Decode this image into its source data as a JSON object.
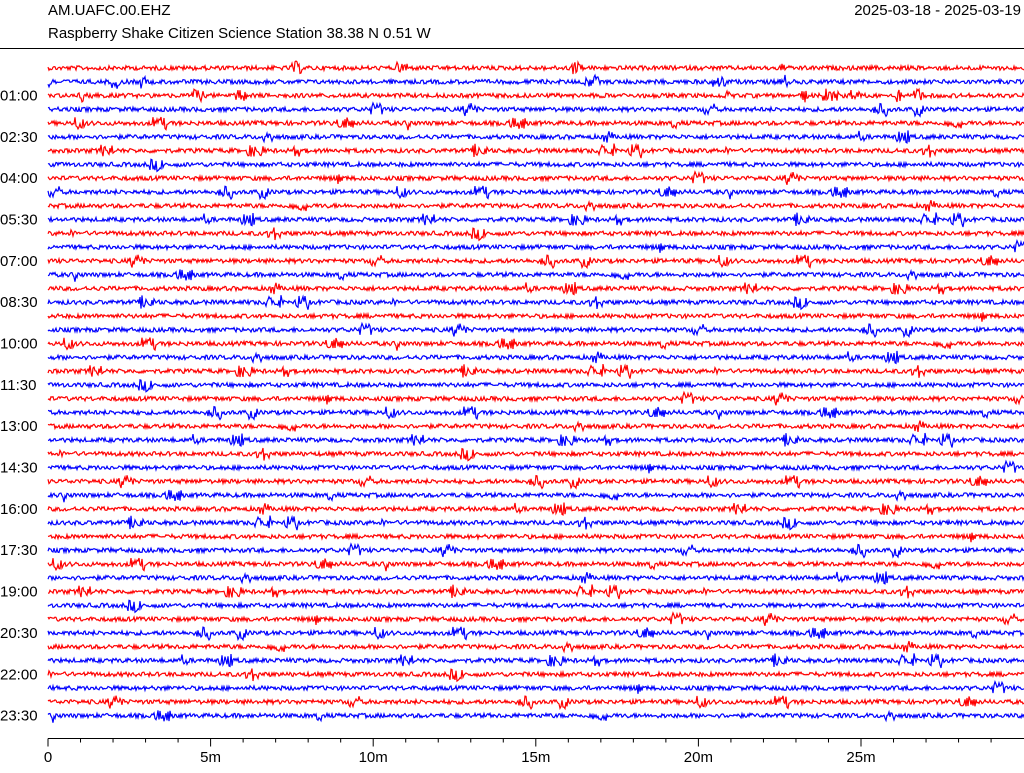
{
  "header": {
    "station": "AM.UAFC.00.EHZ",
    "subtitle": "Raspberry Shake Citizen Science Station  38.38 N 0.51 W",
    "dates": "2025-03-18 - 2025-03-19"
  },
  "chart_data": {
    "type": "helicorder",
    "colors": [
      "#ff0000",
      "#0000ff"
    ],
    "xlim": [
      0,
      30
    ],
    "xticks": [
      0,
      {
        "value": 5,
        "label": "5m"
      },
      {
        "value": 10,
        "label": "10m"
      },
      {
        "value": 15,
        "label": "15m"
      },
      {
        "value": 20,
        "label": "20m"
      },
      {
        "value": 25,
        "label": "25m"
      }
    ],
    "xticks_minor": [
      1,
      2,
      3,
      4,
      6,
      7,
      8,
      9,
      11,
      12,
      13,
      14,
      16,
      17,
      18,
      19,
      21,
      22,
      23,
      24,
      26,
      27,
      28,
      29
    ],
    "ylim": [
      0,
      1440
    ],
    "yticks": [
      {
        "value": 60,
        "label": "01:00"
      },
      {
        "value": 150,
        "label": "02:30"
      },
      {
        "value": 240,
        "label": "04:00"
      },
      {
        "value": 330,
        "label": "05:30"
      },
      {
        "value": 420,
        "label": "07:00"
      },
      {
        "value": 510,
        "label": "08:30"
      },
      {
        "value": 600,
        "label": "10:00"
      },
      {
        "value": 690,
        "label": "11:30"
      },
      {
        "value": 780,
        "label": "13:00"
      },
      {
        "value": 870,
        "label": "14:30"
      },
      {
        "value": 960,
        "label": "16:00"
      },
      {
        "value": 1050,
        "label": "17:30"
      },
      {
        "value": 1140,
        "label": "19:00"
      },
      {
        "value": 1230,
        "label": "20:30"
      },
      {
        "value": 1320,
        "label": "22:00"
      },
      {
        "value": 1410,
        "label": "23:30"
      }
    ]
  }
}
